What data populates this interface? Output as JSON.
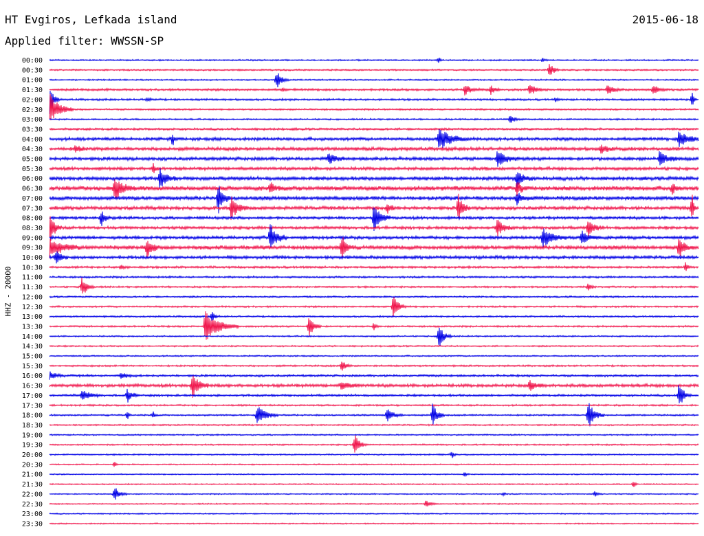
{
  "header": {
    "title": "HT Evgiros, Lefkada island",
    "date": "2015-06-18",
    "filter": "Applied filter: WWSSN-SP"
  },
  "channel_label": "HHZ - 20000",
  "colors": {
    "even_trace": "#0000e6",
    "odd_trace": "#f0144b",
    "text": "#000000"
  },
  "chart_data": {
    "type": "line",
    "rows": [
      "00:00",
      "00:30",
      "01:00",
      "01:30",
      "02:00",
      "02:30",
      "03:00",
      "03:30",
      "04:00",
      "04:30",
      "05:00",
      "05:30",
      "06:00",
      "06:30",
      "07:00",
      "07:30",
      "08:00",
      "08:30",
      "09:00",
      "09:30",
      "10:00",
      "10:30",
      "11:00",
      "11:30",
      "12:00",
      "12:30",
      "13:00",
      "13:30",
      "14:00",
      "14:30",
      "15:00",
      "15:30",
      "16:00",
      "16:30",
      "17:00",
      "17:30",
      "18:00",
      "18:30",
      "19:00",
      "19:30",
      "20:00",
      "20:30",
      "21:00",
      "21:30",
      "22:00",
      "22:30",
      "23:00",
      "23:30"
    ],
    "row_noise": [
      1.2,
      1.3,
      1.2,
      1.8,
      1.6,
      1.4,
      1.3,
      1.8,
      2.6,
      2.8,
      2.8,
      2.6,
      3.0,
      3.6,
      3.2,
      2.8,
      2.4,
      2.4,
      2.6,
      3.2,
      2.6,
      1.8,
      1.6,
      1.4,
      1.4,
      1.4,
      1.4,
      1.4,
      1.2,
      1.2,
      1.2,
      1.4,
      1.8,
      2.6,
      1.8,
      1.4,
      1.4,
      1.2,
      1.2,
      1.2,
      1.2,
      1.0,
      1.0,
      1.0,
      1.0,
      1.0,
      1.0,
      1.0
    ],
    "events": [
      {
        "row": 0,
        "t": 0.6,
        "amp": 6,
        "dur": 0.08
      },
      {
        "row": 0,
        "t": 0.76,
        "amp": 3,
        "dur": 0.1
      },
      {
        "row": 1,
        "t": 0.77,
        "amp": 12,
        "dur": 0.25
      },
      {
        "row": 2,
        "t": 0.35,
        "amp": 14,
        "dur": 0.3
      },
      {
        "row": 3,
        "t": 0.36,
        "amp": 3,
        "dur": 0.1
      },
      {
        "row": 3,
        "t": 0.64,
        "amp": 9,
        "dur": 0.35
      },
      {
        "row": 3,
        "t": 0.68,
        "amp": 7,
        "dur": 0.25
      },
      {
        "row": 3,
        "t": 0.74,
        "amp": 8,
        "dur": 0.4
      },
      {
        "row": 3,
        "t": 0.86,
        "amp": 8,
        "dur": 0.35
      },
      {
        "row": 3,
        "t": 0.93,
        "amp": 7,
        "dur": 0.3
      },
      {
        "row": 4,
        "t": 0.0,
        "amp": 22,
        "dur": 0.25
      },
      {
        "row": 4,
        "t": 0.15,
        "amp": 3,
        "dur": 0.2
      },
      {
        "row": 4,
        "t": 0.78,
        "amp": 3,
        "dur": 0.1
      },
      {
        "row": 4,
        "t": 0.99,
        "amp": 14,
        "dur": 0.1
      },
      {
        "row": 5,
        "t": 0.0,
        "amp": 24,
        "dur": 0.6
      },
      {
        "row": 6,
        "t": 0.71,
        "amp": 7,
        "dur": 0.25
      },
      {
        "row": 8,
        "t": 0.19,
        "amp": 10,
        "dur": 0.08
      },
      {
        "row": 8,
        "t": 0.6,
        "amp": 18,
        "dur": 0.7
      },
      {
        "row": 8,
        "t": 0.97,
        "amp": 12,
        "dur": 0.6
      },
      {
        "row": 9,
        "t": 0.04,
        "amp": 6,
        "dur": 0.3
      },
      {
        "row": 9,
        "t": 0.85,
        "amp": 6,
        "dur": 0.4
      },
      {
        "row": 10,
        "t": 0.43,
        "amp": 8,
        "dur": 0.4
      },
      {
        "row": 10,
        "t": 0.69,
        "amp": 12,
        "dur": 0.5
      },
      {
        "row": 10,
        "t": 0.94,
        "amp": 10,
        "dur": 0.5
      },
      {
        "row": 11,
        "t": 0.16,
        "amp": 10,
        "dur": 0.12
      },
      {
        "row": 12,
        "t": 0.17,
        "amp": 14,
        "dur": 0.4
      },
      {
        "row": 12,
        "t": 0.72,
        "amp": 12,
        "dur": 0.4
      },
      {
        "row": 13,
        "t": 0.1,
        "amp": 20,
        "dur": 0.5
      },
      {
        "row": 13,
        "t": 0.34,
        "amp": 8,
        "dur": 0.3
      },
      {
        "row": 13,
        "t": 0.72,
        "amp": 9,
        "dur": 0.3
      },
      {
        "row": 13,
        "t": 0.96,
        "amp": 8,
        "dur": 0.2
      },
      {
        "row": 14,
        "t": 0.26,
        "amp": 22,
        "dur": 0.3
      },
      {
        "row": 14,
        "t": 0.72,
        "amp": 10,
        "dur": 0.3
      },
      {
        "row": 15,
        "t": 0.28,
        "amp": 18,
        "dur": 0.4
      },
      {
        "row": 15,
        "t": 0.52,
        "amp": 7,
        "dur": 0.3
      },
      {
        "row": 15,
        "t": 0.63,
        "amp": 20,
        "dur": 0.3
      },
      {
        "row": 15,
        "t": 0.99,
        "amp": 22,
        "dur": 0.1
      },
      {
        "row": 16,
        "t": 0.08,
        "amp": 14,
        "dur": 0.2
      },
      {
        "row": 16,
        "t": 0.5,
        "amp": 20,
        "dur": 0.4
      },
      {
        "row": 17,
        "t": 0.0,
        "amp": 24,
        "dur": 0.3
      },
      {
        "row": 17,
        "t": 0.69,
        "amp": 12,
        "dur": 0.4
      },
      {
        "row": 17,
        "t": 0.83,
        "amp": 12,
        "dur": 0.4
      },
      {
        "row": 18,
        "t": 0.34,
        "amp": 22,
        "dur": 0.4
      },
      {
        "row": 18,
        "t": 0.76,
        "amp": 16,
        "dur": 0.6
      },
      {
        "row": 18,
        "t": 0.82,
        "amp": 10,
        "dur": 0.5
      },
      {
        "row": 19,
        "t": 0.0,
        "amp": 14,
        "dur": 0.8
      },
      {
        "row": 19,
        "t": 0.15,
        "amp": 16,
        "dur": 0.3
      },
      {
        "row": 19,
        "t": 0.45,
        "amp": 18,
        "dur": 0.3
      },
      {
        "row": 19,
        "t": 0.97,
        "amp": 18,
        "dur": 0.3
      },
      {
        "row": 20,
        "t": 0.01,
        "amp": 10,
        "dur": 0.3
      },
      {
        "row": 21,
        "t": 0.11,
        "amp": 4,
        "dur": 0.2
      },
      {
        "row": 21,
        "t": 0.98,
        "amp": 10,
        "dur": 0.1
      },
      {
        "row": 23,
        "t": 0.05,
        "amp": 16,
        "dur": 0.3
      },
      {
        "row": 23,
        "t": 0.83,
        "amp": 6,
        "dur": 0.2
      },
      {
        "row": 25,
        "t": 0.53,
        "amp": 18,
        "dur": 0.3
      },
      {
        "row": 26,
        "t": 0.25,
        "amp": 8,
        "dur": 0.2
      },
      {
        "row": 27,
        "t": 0.24,
        "amp": 24,
        "dur": 0.8
      },
      {
        "row": 27,
        "t": 0.4,
        "amp": 16,
        "dur": 0.3
      },
      {
        "row": 27,
        "t": 0.5,
        "amp": 6,
        "dur": 0.1
      },
      {
        "row": 28,
        "t": 0.6,
        "amp": 18,
        "dur": 0.3
      },
      {
        "row": 31,
        "t": 0.45,
        "amp": 8,
        "dur": 0.3
      },
      {
        "row": 32,
        "t": 0.0,
        "amp": 6,
        "dur": 0.4
      },
      {
        "row": 32,
        "t": 0.11,
        "amp": 4,
        "dur": 0.4
      },
      {
        "row": 33,
        "t": 0.22,
        "amp": 18,
        "dur": 0.4
      },
      {
        "row": 33,
        "t": 0.45,
        "amp": 6,
        "dur": 0.5
      },
      {
        "row": 33,
        "t": 0.74,
        "amp": 8,
        "dur": 0.4
      },
      {
        "row": 34,
        "t": 0.05,
        "amp": 8,
        "dur": 0.5
      },
      {
        "row": 34,
        "t": 0.12,
        "amp": 10,
        "dur": 0.3
      },
      {
        "row": 34,
        "t": 0.97,
        "amp": 18,
        "dur": 0.3
      },
      {
        "row": 36,
        "t": 0.12,
        "amp": 7,
        "dur": 0.1
      },
      {
        "row": 36,
        "t": 0.16,
        "amp": 5,
        "dur": 0.1
      },
      {
        "row": 36,
        "t": 0.32,
        "amp": 16,
        "dur": 0.5
      },
      {
        "row": 36,
        "t": 0.52,
        "amp": 10,
        "dur": 0.4
      },
      {
        "row": 36,
        "t": 0.59,
        "amp": 18,
        "dur": 0.3
      },
      {
        "row": 36,
        "t": 0.83,
        "amp": 22,
        "dur": 0.4
      },
      {
        "row": 39,
        "t": 0.47,
        "amp": 16,
        "dur": 0.3
      },
      {
        "row": 40,
        "t": 0.62,
        "amp": 6,
        "dur": 0.1
      },
      {
        "row": 41,
        "t": 0.1,
        "amp": 5,
        "dur": 0.1
      },
      {
        "row": 42,
        "t": 0.64,
        "amp": 4,
        "dur": 0.1
      },
      {
        "row": 43,
        "t": 0.9,
        "amp": 5,
        "dur": 0.1
      },
      {
        "row": 44,
        "t": 0.1,
        "amp": 12,
        "dur": 0.3
      },
      {
        "row": 44,
        "t": 0.7,
        "amp": 3,
        "dur": 0.1
      },
      {
        "row": 44,
        "t": 0.84,
        "amp": 4,
        "dur": 0.2
      },
      {
        "row": 45,
        "t": 0.58,
        "amp": 5,
        "dur": 0.3
      }
    ]
  }
}
